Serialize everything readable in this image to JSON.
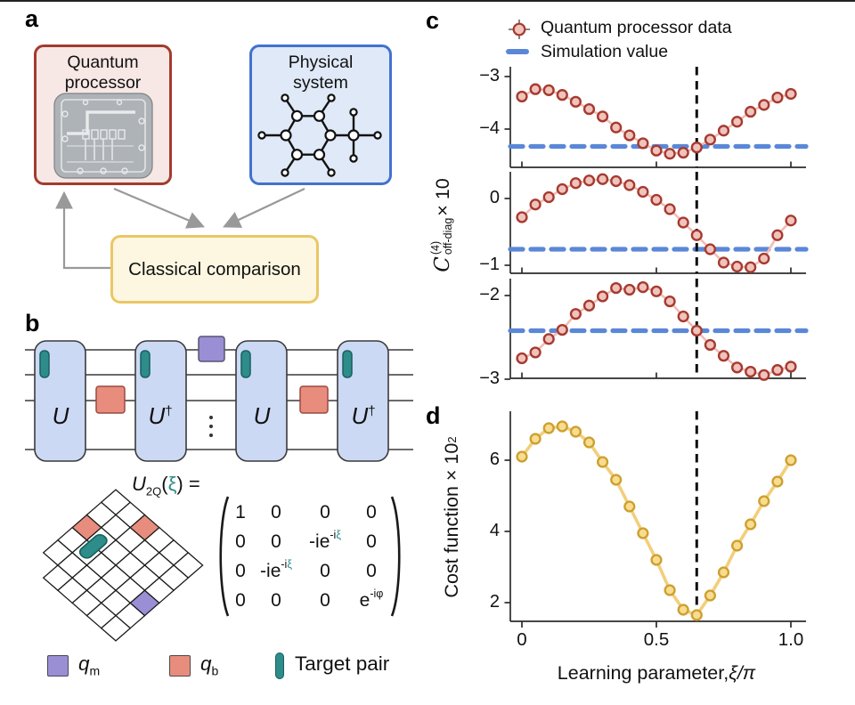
{
  "figure": {
    "panel_a_label": "a",
    "panel_b_label": "b",
    "panel_c_label": "c",
    "panel_d_label": "d"
  },
  "panel_a": {
    "quantum_processor": {
      "line1": "Quantum",
      "line2": "processor"
    },
    "physical_system": {
      "line1": "Physical",
      "line2": "system"
    },
    "classical_comparison": {
      "label": "Classical comparison"
    }
  },
  "panel_b": {
    "gates": [
      {
        "base": "U",
        "sup": ""
      },
      {
        "base": "U",
        "sup": "†"
      },
      {
        "base": "U",
        "sup": ""
      },
      {
        "base": "U",
        "sup": "†"
      }
    ],
    "dots": "⋮",
    "matrix": {
      "title": {
        "u": "U",
        "sub": "2Q",
        "open": "(",
        "xi": "ξ",
        "close": ")",
        "eq": " ="
      },
      "cells": [
        {
          "b": "1",
          "s": "",
          "x": ""
        },
        {
          "b": "0",
          "s": "",
          "x": ""
        },
        {
          "b": "0",
          "s": "",
          "x": ""
        },
        {
          "b": "0",
          "s": "",
          "x": ""
        },
        {
          "b": "0",
          "s": "",
          "x": ""
        },
        {
          "b": "0",
          "s": "",
          "x": ""
        },
        {
          "b": "-ie",
          "s": "-i",
          "x": "ξ"
        },
        {
          "b": "0",
          "s": "",
          "x": ""
        },
        {
          "b": "0",
          "s": "",
          "x": ""
        },
        {
          "b": "-ie",
          "s": "-i",
          "x": "ξ"
        },
        {
          "b": "0",
          "s": "",
          "x": ""
        },
        {
          "b": "0",
          "s": "",
          "x": ""
        },
        {
          "b": "0",
          "s": "",
          "x": ""
        },
        {
          "b": "0",
          "s": "",
          "x": ""
        },
        {
          "b": "0",
          "s": "",
          "x": ""
        },
        {
          "b": "e",
          "s": "-iφ",
          "x": ""
        }
      ]
    },
    "legend": {
      "qm": {
        "base": "q",
        "sub": "m"
      },
      "qb": {
        "base": "q",
        "sub": "b"
      },
      "target": {
        "label": "Target pair"
      }
    }
  },
  "panel_c": {
    "legend": [
      {
        "label": "Quantum processor data"
      },
      {
        "label": "Simulation value"
      }
    ],
    "ylabel": {
      "c": "C",
      "sup": "(4)",
      "sub": "off-diag",
      "times": " × 10"
    }
  },
  "panel_d": {
    "ylabel": {
      "main": "Cost function × 10",
      "sup": "2"
    },
    "xlabel": {
      "main": "Learning parameter, ",
      "math": "ξ/π"
    },
    "xtick_labels": [
      "0",
      "0.5",
      "1.0"
    ]
  },
  "chart_data": [
    {
      "id": "c1",
      "type": "scatter-line",
      "series": "Quantum processor data",
      "x_start": 0,
      "x_step": 0.05,
      "values": [
        -3.38,
        -3.24,
        -3.26,
        -3.35,
        -3.48,
        -3.62,
        -3.76,
        -3.97,
        -4.12,
        -4.27,
        -4.41,
        -4.47,
        -4.45,
        -4.35,
        -4.2,
        -4.03,
        -3.86,
        -3.67,
        -3.54,
        -3.4,
        -3.33
      ],
      "sim_value": -4.33,
      "vline_x": 0.65,
      "ylim": [
        -4.75,
        -2.85
      ],
      "yticks": [
        {
          "v": -3,
          "label": "−3"
        },
        {
          "v": -4,
          "label": "−4"
        }
      ],
      "xticks": [
        0,
        0.5,
        1
      ],
      "xticks_out": false,
      "line_color": "red_line",
      "marker_fill": "red_fill",
      "marker_stroke": "red_stroke"
    },
    {
      "id": "c2",
      "type": "scatter-line",
      "series": "Quantum processor data",
      "x_start": 0,
      "x_step": 0.05,
      "values": [
        -0.28,
        -0.09,
        0.02,
        0.14,
        0.23,
        0.27,
        0.29,
        0.26,
        0.2,
        0.1,
        -0.02,
        -0.16,
        -0.36,
        -0.55,
        -0.76,
        -0.96,
        -1.02,
        -1.03,
        -0.9,
        -0.55,
        -0.33
      ],
      "sim_value": -0.76,
      "vline_x": 0.65,
      "ylim": [
        -1.13,
        0.4
      ],
      "yticks": [
        {
          "v": 0,
          "label": "0"
        },
        {
          "v": -1,
          "label": "−1"
        }
      ],
      "xticks": [
        0,
        0.5,
        1
      ],
      "xticks_out": false,
      "line_color": "red_line",
      "marker_fill": "red_fill",
      "marker_stroke": "red_stroke"
    },
    {
      "id": "c3",
      "type": "scatter-line",
      "series": "Quantum processor data",
      "x_start": 0,
      "x_step": 0.05,
      "values": [
        -2.75,
        -2.68,
        -2.52,
        -2.41,
        -2.22,
        -2.12,
        -2.01,
        -1.91,
        -1.93,
        -1.9,
        -1.95,
        -2.07,
        -2.25,
        -2.42,
        -2.59,
        -2.72,
        -2.86,
        -2.91,
        -2.95,
        -2.89,
        -2.85
      ],
      "sim_value": -2.42,
      "vline_x": 0.65,
      "ylim": [
        -3.05,
        -1.81
      ],
      "yticks": [
        {
          "v": -2,
          "label": "−2"
        },
        {
          "v": -3,
          "label": "−3"
        }
      ],
      "xticks": [
        0,
        0.5,
        1
      ],
      "xticks_out": false,
      "line_color": "red_line",
      "marker_fill": "red_fill",
      "marker_stroke": "red_stroke"
    },
    {
      "id": "d",
      "type": "scatter-line",
      "series": "Cost function",
      "x_start": 0,
      "x_step": 0.05,
      "values": [
        6.1,
        6.6,
        6.9,
        6.95,
        6.8,
        6.5,
        5.95,
        5.45,
        4.7,
        3.95,
        3.2,
        2.35,
        1.8,
        1.65,
        2.2,
        2.85,
        3.6,
        4.2,
        4.85,
        5.4,
        6.0
      ],
      "vline_x": 0.65,
      "ylim": [
        1.48,
        7.35
      ],
      "xlabel": "Learning parameter, ξ/π",
      "ylabel": "Cost function × 10²",
      "yticks": [
        {
          "v": 6,
          "label": "6"
        },
        {
          "v": 4,
          "label": "4"
        },
        {
          "v": 2,
          "label": "2"
        }
      ],
      "xticks": [
        0,
        0.5,
        1
      ],
      "xticks_out": true,
      "xtick_values": [
        0,
        0.5,
        1.0
      ],
      "line_color": "gold_line",
      "marker_fill": "gold_fill",
      "marker_stroke": "gold_stroke"
    }
  ],
  "colors": {
    "red_stroke": "#A63A30",
    "red_fill": "#F0C3BC",
    "red_line": "#F2BDB5",
    "blue": "#5B87D8",
    "gold_line": "#F2CF7B",
    "gold_fill": "#F8DC8F",
    "gold_stroke": "#CDA02F",
    "teal": "#2E8C8A",
    "salmon": "#E88D7D",
    "purple": "#9A8ED5",
    "box_red": "#A33B2E",
    "box_red_bg": "#F7E8E5",
    "box_blue": "#4272CF",
    "box_blue_bg": "#DFE9F7",
    "box_yellow": "#EAC766",
    "box_yellow_bg": "#FDF7E1",
    "circuit_blue": "#CCD9F4",
    "gray_arrow": "#999999"
  }
}
